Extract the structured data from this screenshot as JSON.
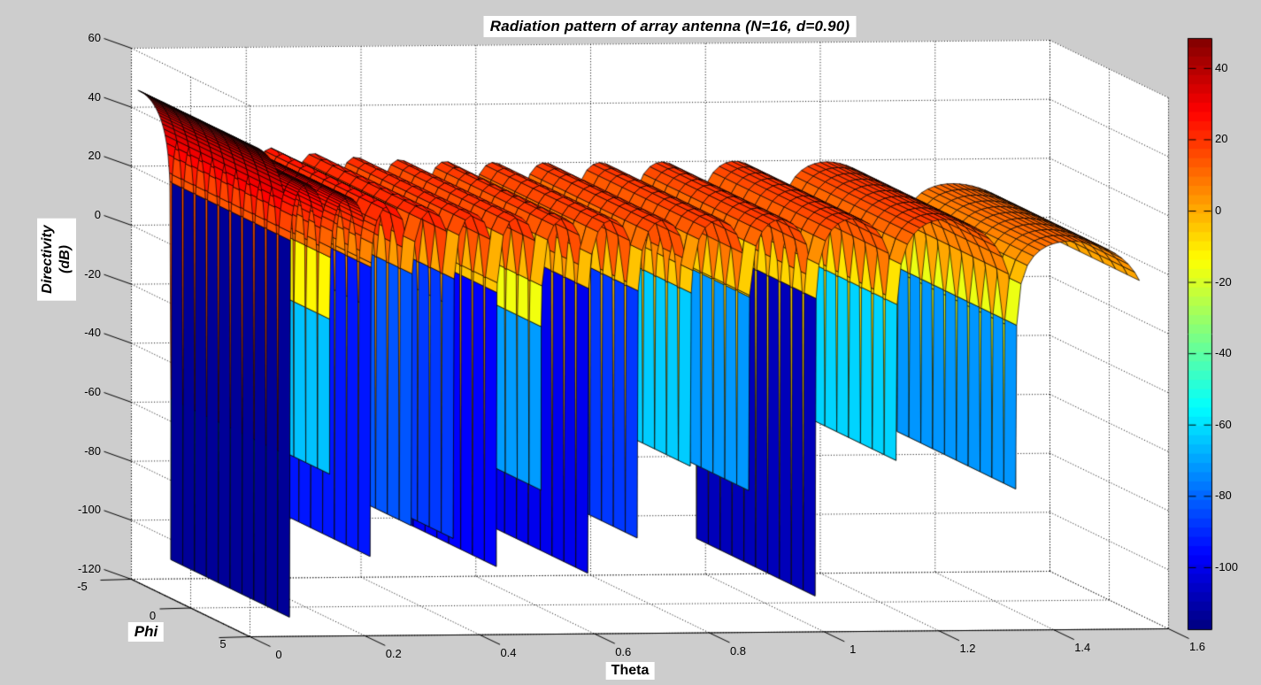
{
  "figure": {
    "title": "Radiation pattern of array antenna (N=16, d=0.90)",
    "background_color": "#cdcdcd",
    "plot_area_color": "#ffffff",
    "grid_color": "#000000",
    "mesh_line_color": "#000000"
  },
  "axes": {
    "z": {
      "label_line1": "Directivity",
      "label_line2": "(dB)",
      "ticks": [
        60,
        40,
        20,
        0,
        -20,
        -40,
        -60,
        -80,
        -100,
        -120
      ],
      "range": [
        -120,
        60
      ]
    },
    "theta": {
      "label": "Theta",
      "ticks": [
        0,
        0.2,
        0.4,
        0.6,
        0.8,
        1,
        1.2,
        1.4,
        1.6
      ],
      "range": [
        0,
        1.6
      ]
    },
    "phi": {
      "label": "Phi",
      "ticks": [
        -5,
        0,
        5
      ],
      "range": [
        -5,
        5
      ]
    }
  },
  "colorbar": {
    "ticks": [
      40,
      20,
      0,
      -20,
      -40,
      -60,
      -80,
      -100
    ],
    "max": 48.4,
    "min": -117.4,
    "bands": 64,
    "colormap": "jet"
  },
  "chart_data": {
    "type": "surface",
    "title": "Radiation pattern of array antenna (N=16, d=0.90)",
    "xlabel": "Theta",
    "ylabel": "Phi",
    "zlabel": "Directivity (dB)",
    "x_range": [
      0,
      1.6
    ],
    "y_range": [
      -5,
      5
    ],
    "zlim": [
      -120,
      60
    ],
    "array_elements_N": 16,
    "element_spacing_d": 0.9,
    "peak_directivity_dB": 46,
    "theta_max_plotted": 1.55,
    "colormap": "jet",
    "caxis": [
      -117.4,
      48.4
    ],
    "grid": "dotted",
    "model": "D(theta,phi) = 46 + 20*log10(|sin(N*pi*d*sin(theta)) / (N*sin(pi*d*sin(theta)))|) + 20*log10(cos(theta)); independent of phi; deep nulls at sin(theta)=k/(N*d), k=1..14; main lobe peak ~46 dB at theta=0"
  }
}
